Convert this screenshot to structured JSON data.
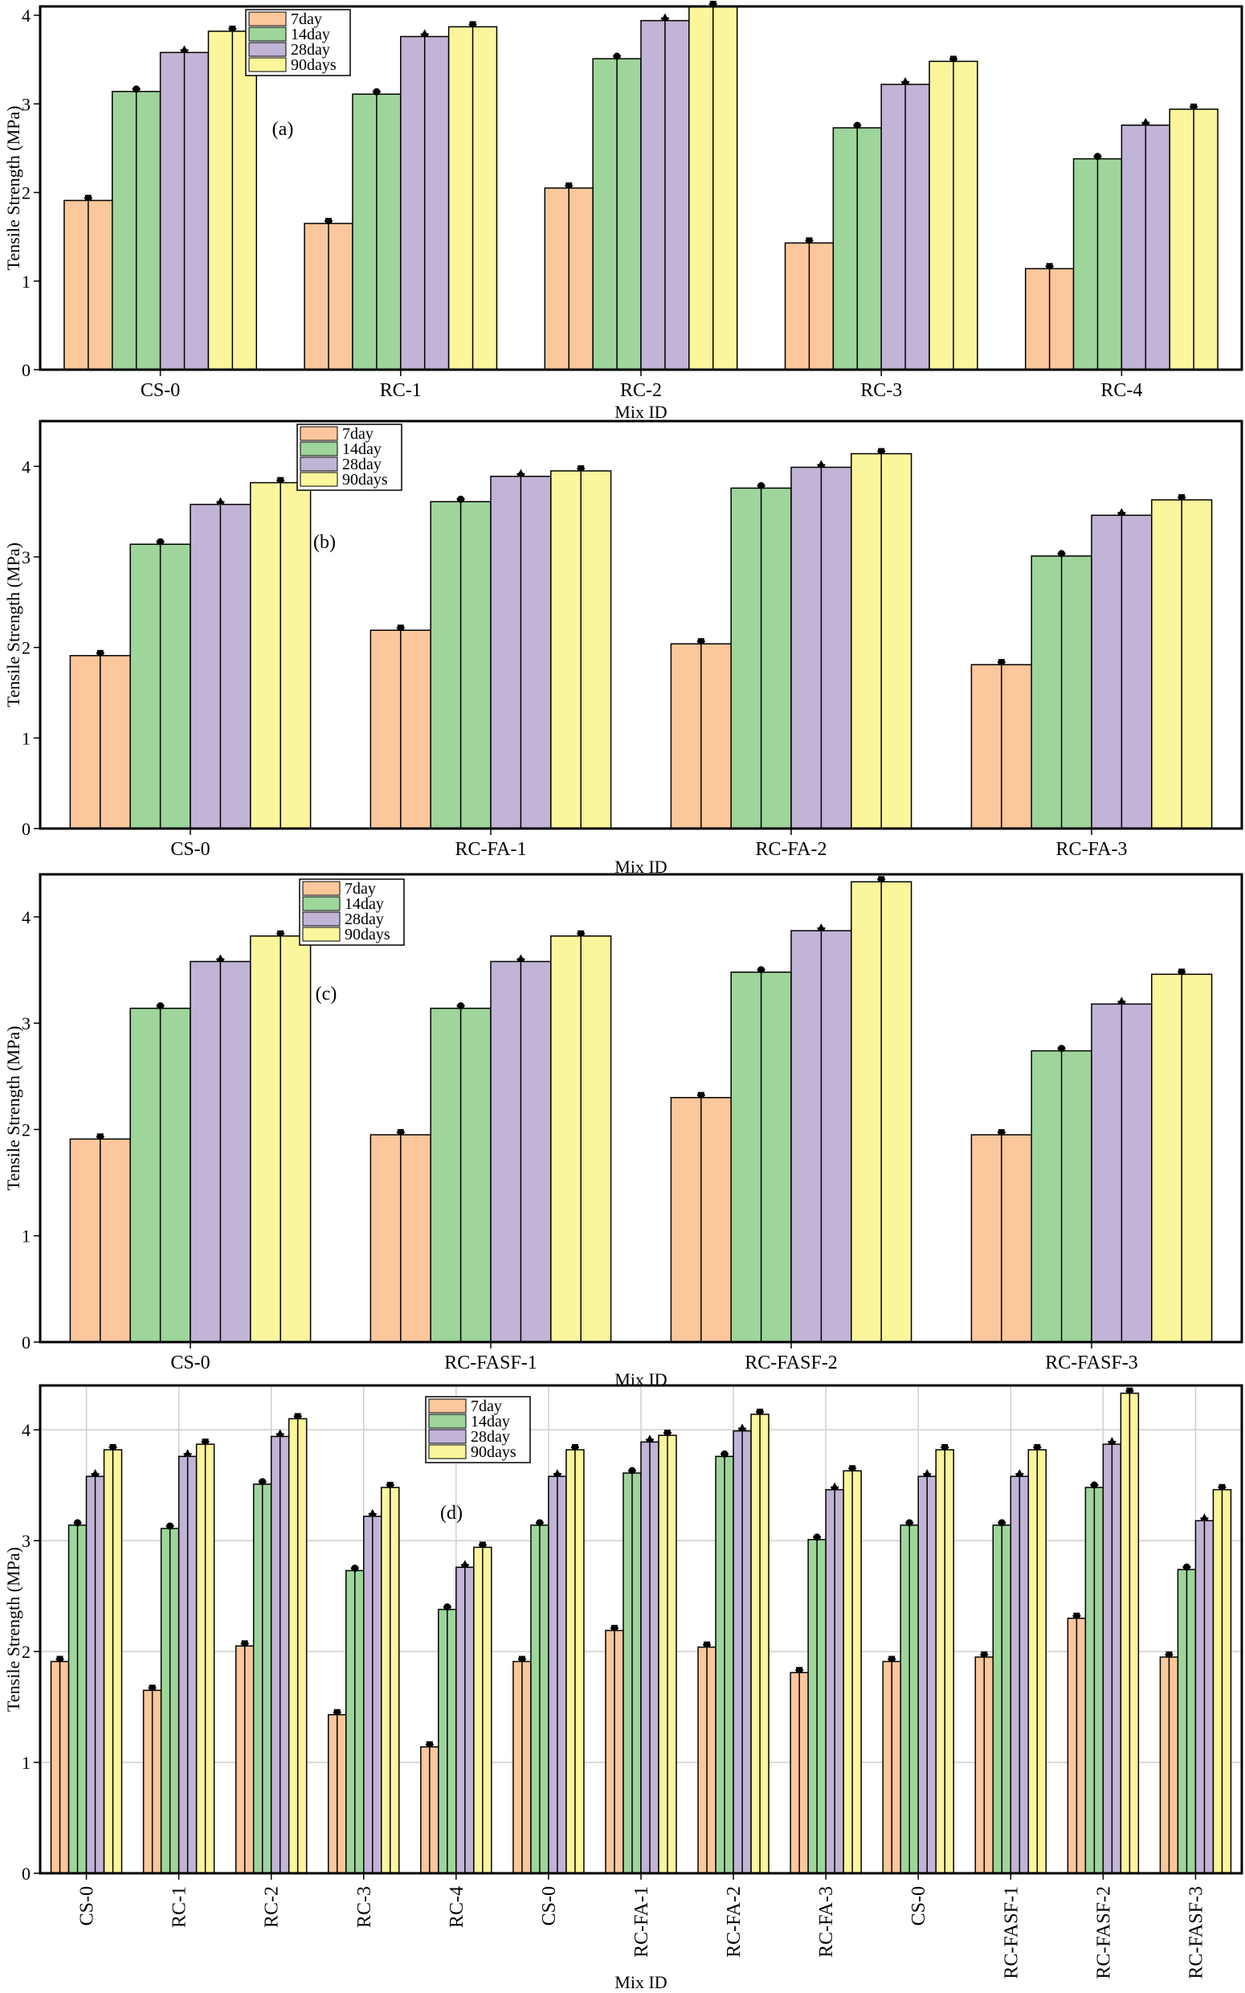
{
  "figure": {
    "series_colors": {
      "7day": "#fbc79b",
      "14day": "#9ed59b",
      "28day": "#c1b4d6",
      "90days": "#fbf59c"
    },
    "frame_color": "#000000",
    "grid_color": "#cfcfcf"
  },
  "chart_data": [
    {
      "type": "bar",
      "panel_label": "(a)",
      "xlabel": "Mix ID",
      "ylabel": "Tensile Strength (MPa)",
      "ylim": [
        0,
        4.1
      ],
      "yticks": [
        0,
        1,
        2,
        3,
        4
      ],
      "yticks_labels": [
        "0",
        "1",
        "2",
        "3",
        "4"
      ],
      "legend_position": "top-left-center",
      "categories": [
        "CS-0",
        "RC-1",
        "RC-2",
        "RC-3",
        "RC-4"
      ],
      "series": [
        {
          "name": "7day",
          "values": [
            1.91,
            1.65,
            2.05,
            1.43,
            1.14
          ]
        },
        {
          "name": "14day",
          "values": [
            3.14,
            3.11,
            3.51,
            2.73,
            2.38
          ]
        },
        {
          "name": "28day",
          "values": [
            3.58,
            3.76,
            3.94,
            3.22,
            2.76
          ]
        },
        {
          "name": "90days",
          "values": [
            3.82,
            3.87,
            4.1,
            3.48,
            2.94
          ]
        }
      ]
    },
    {
      "type": "bar",
      "panel_label": "(b)",
      "xlabel": "Mix ID",
      "ylabel": "Tensile Strength (MPa)",
      "ylim": [
        0,
        4.5
      ],
      "yticks": [
        0,
        1,
        2,
        3,
        4
      ],
      "yticks_labels": [
        "0",
        "1",
        "2",
        "3",
        "4"
      ],
      "legend_position": "top-left-center",
      "categories": [
        "CS-0",
        "RC-FA-1",
        "RC-FA-2",
        "RC-FA-3"
      ],
      "series": [
        {
          "name": "7day",
          "values": [
            1.91,
            2.19,
            2.04,
            1.81
          ]
        },
        {
          "name": "14day",
          "values": [
            3.14,
            3.61,
            3.76,
            3.01
          ]
        },
        {
          "name": "28day",
          "values": [
            3.58,
            3.89,
            3.99,
            3.46
          ]
        },
        {
          "name": "90days",
          "values": [
            3.82,
            3.95,
            4.14,
            3.63
          ]
        }
      ]
    },
    {
      "type": "bar",
      "panel_label": "(c)",
      "xlabel": "Mix ID",
      "ylabel": "Tensile Strength (MPa)",
      "ylim": [
        0,
        4.4
      ],
      "yticks": [
        0,
        1,
        2,
        3,
        4
      ],
      "yticks_labels": [
        "0",
        "1",
        "2",
        "3",
        "4"
      ],
      "legend_position": "top-left-center",
      "categories": [
        "CS-0",
        "RC-FASF-1",
        "RC-FASF-2",
        "RC-FASF-3"
      ],
      "series": [
        {
          "name": "7day",
          "values": [
            1.91,
            1.95,
            2.3,
            1.95
          ]
        },
        {
          "name": "14day",
          "values": [
            3.14,
            3.14,
            3.48,
            2.74
          ]
        },
        {
          "name": "28day",
          "values": [
            3.58,
            3.58,
            3.87,
            3.18
          ]
        },
        {
          "name": "90days",
          "values": [
            3.82,
            3.82,
            4.33,
            3.46
          ]
        }
      ]
    },
    {
      "type": "bar",
      "panel_label": "(d)",
      "xlabel": "Mix ID",
      "ylabel": "Tensile Strength (MPa)",
      "ylim": [
        0,
        4.4
      ],
      "yticks": [
        0,
        1,
        2,
        3,
        4
      ],
      "yticks_labels": [
        "0",
        "1",
        "2",
        "3",
        "4"
      ],
      "legend_position": "top-center",
      "grid": true,
      "rotated_tick_labels": true,
      "categories": [
        "CS-0",
        "RC-1",
        "RC-2",
        "RC-3",
        "RC-4",
        "CS-0",
        "RC-FA-1",
        "RC-FA-2",
        "RC-FA-3",
        "CS-0",
        "RC-FASF-1",
        "RC-FASF-2",
        "RC-FASF-3"
      ],
      "series": [
        {
          "name": "7day",
          "values": [
            1.91,
            1.65,
            2.05,
            1.43,
            1.14,
            1.91,
            2.19,
            2.04,
            1.81,
            1.91,
            1.95,
            2.3,
            1.95
          ]
        },
        {
          "name": "14day",
          "values": [
            3.14,
            3.11,
            3.51,
            2.73,
            2.38,
            3.14,
            3.61,
            3.76,
            3.01,
            3.14,
            3.14,
            3.48,
            2.74
          ]
        },
        {
          "name": "28day",
          "values": [
            3.58,
            3.76,
            3.94,
            3.22,
            2.76,
            3.58,
            3.89,
            3.99,
            3.46,
            3.58,
            3.58,
            3.87,
            3.18
          ]
        },
        {
          "name": "90days",
          "values": [
            3.82,
            3.87,
            4.1,
            3.48,
            2.94,
            3.82,
            3.95,
            4.14,
            3.63,
            3.82,
            3.82,
            4.33,
            3.46
          ]
        }
      ]
    }
  ]
}
